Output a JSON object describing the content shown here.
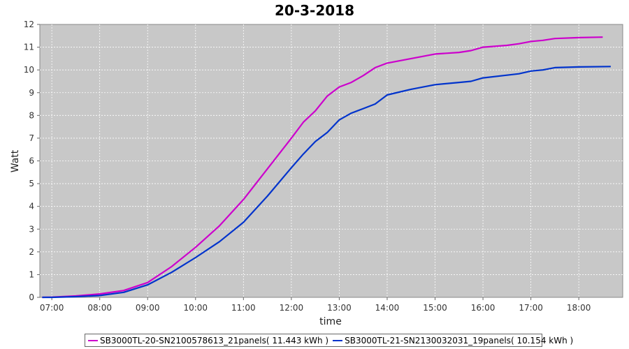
{
  "chart_data": {
    "type": "line",
    "title": "20-3-2018",
    "xlabel": "time",
    "ylabel": "Watt",
    "ylim": [
      0,
      12
    ],
    "xlim": [
      "06:45",
      "18:55"
    ],
    "yticks": [
      "0",
      "1",
      "2",
      "3",
      "4",
      "5",
      "6",
      "7",
      "8",
      "9",
      "10",
      "11",
      "12"
    ],
    "xticks": [
      "07:00",
      "08:00",
      "09:00",
      "10:00",
      "11:00",
      "12:00",
      "13:00",
      "14:00",
      "15:00",
      "16:00",
      "17:00",
      "18:00"
    ],
    "grid": true,
    "legend_position": "bottom",
    "series": [
      {
        "name": "SB3000TL-20-SN2100578613_21panels( 11.443 kWh )",
        "color": "#cc00cc",
        "points": [
          [
            "06:48",
            0.0
          ],
          [
            "07:00",
            0.01
          ],
          [
            "07:30",
            0.06
          ],
          [
            "08:00",
            0.15
          ],
          [
            "08:30",
            0.3
          ],
          [
            "09:00",
            0.65
          ],
          [
            "09:30",
            1.35
          ],
          [
            "10:00",
            2.2
          ],
          [
            "10:30",
            3.15
          ],
          [
            "11:00",
            4.3
          ],
          [
            "11:30",
            5.65
          ],
          [
            "12:00",
            7.0
          ],
          [
            "12:15",
            7.7
          ],
          [
            "12:30",
            8.2
          ],
          [
            "12:45",
            8.85
          ],
          [
            "13:00",
            9.25
          ],
          [
            "13:15",
            9.45
          ],
          [
            "13:30",
            9.75
          ],
          [
            "13:45",
            10.1
          ],
          [
            "14:00",
            10.3
          ],
          [
            "14:30",
            10.5
          ],
          [
            "15:00",
            10.7
          ],
          [
            "15:30",
            10.77
          ],
          [
            "15:45",
            10.85
          ],
          [
            "16:00",
            11.0
          ],
          [
            "16:30",
            11.08
          ],
          [
            "16:45",
            11.15
          ],
          [
            "17:00",
            11.25
          ],
          [
            "17:15",
            11.3
          ],
          [
            "17:30",
            11.38
          ],
          [
            "18:00",
            11.42
          ],
          [
            "18:30",
            11.44
          ]
        ]
      },
      {
        "name": "SB3000TL-21-SN2130032031_19panels( 10.154 kWh )",
        "color": "#0033cc",
        "points": [
          [
            "06:48",
            0.0
          ],
          [
            "07:00",
            0.0
          ],
          [
            "07:30",
            0.03
          ],
          [
            "08:00",
            0.08
          ],
          [
            "08:30",
            0.22
          ],
          [
            "09:00",
            0.55
          ],
          [
            "09:30",
            1.1
          ],
          [
            "10:00",
            1.75
          ],
          [
            "10:30",
            2.45
          ],
          [
            "11:00",
            3.3
          ],
          [
            "11:30",
            4.45
          ],
          [
            "12:00",
            5.7
          ],
          [
            "12:15",
            6.3
          ],
          [
            "12:30",
            6.85
          ],
          [
            "12:45",
            7.25
          ],
          [
            "13:00",
            7.8
          ],
          [
            "13:15",
            8.1
          ],
          [
            "13:30",
            8.3
          ],
          [
            "13:45",
            8.5
          ],
          [
            "14:00",
            8.9
          ],
          [
            "14:30",
            9.15
          ],
          [
            "15:00",
            9.35
          ],
          [
            "15:30",
            9.45
          ],
          [
            "15:45",
            9.5
          ],
          [
            "16:00",
            9.65
          ],
          [
            "16:30",
            9.77
          ],
          [
            "16:45",
            9.83
          ],
          [
            "17:00",
            9.95
          ],
          [
            "17:15",
            10.0
          ],
          [
            "17:30",
            10.1
          ],
          [
            "18:00",
            10.13
          ],
          [
            "18:40",
            10.15
          ]
        ]
      }
    ]
  }
}
